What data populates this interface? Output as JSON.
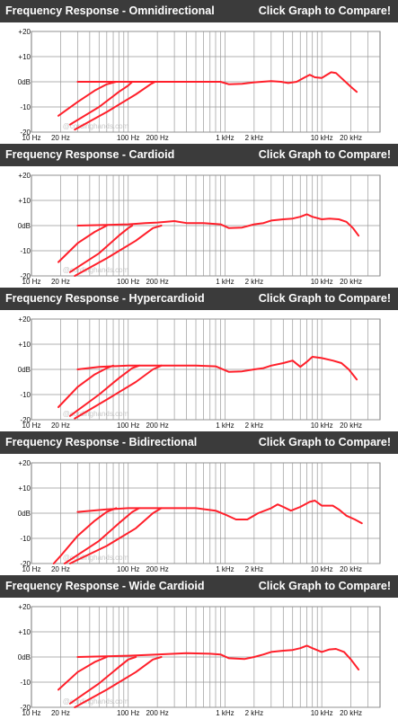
{
  "compare_label": "Click Graph to Compare!",
  "watermark": "@cordinghands.com",
  "colors": {
    "header_bg": "#3b3b3b",
    "grid": "#999999",
    "curve": "#ff1f2a"
  },
  "chart_data": [
    {
      "type": "line",
      "title": "Frequency Response - Omnidirectional",
      "xscale": "log",
      "xlim": [
        10,
        40000
      ],
      "ylim": [
        -20,
        20
      ],
      "x_tick_labels": [
        "10 Hz",
        "20 Hz",
        "100 Hz",
        "200 Hz",
        "1 kHz",
        "2 kHz",
        "10 kHz",
        "20 kHz"
      ],
      "x_tick_values": [
        10,
        20,
        100,
        200,
        1000,
        2000,
        10000,
        20000
      ],
      "y_tick_labels": [
        "+20",
        "+10",
        "0dB",
        "-10",
        "-20"
      ],
      "y_tick_values": [
        20,
        10,
        0,
        -10,
        -20
      ],
      "grid": true,
      "series": [
        {
          "points": [
            [
              30,
              0
            ],
            [
              200,
              0
            ],
            [
              500,
              0
            ],
            [
              900,
              0
            ],
            [
              1100,
              -1
            ],
            [
              1500,
              -0.8
            ],
            [
              2000,
              -0.2
            ],
            [
              3000,
              0.3
            ],
            [
              3800,
              0
            ],
            [
              4500,
              -0.5
            ],
            [
              5500,
              0
            ],
            [
              6500,
              1.5
            ],
            [
              7500,
              2.8
            ],
            [
              8500,
              1.8
            ],
            [
              10000,
              1.5
            ],
            [
              11000,
              2.5
            ],
            [
              12500,
              3.8
            ],
            [
              14000,
              3.5
            ],
            [
              17000,
              0.5
            ],
            [
              20000,
              -2
            ],
            [
              23000,
              -4
            ]
          ]
        },
        {
          "points": [
            [
              19,
              -13.5
            ],
            [
              30,
              -8
            ],
            [
              45,
              -3.5
            ],
            [
              60,
              -1
            ],
            [
              75,
              0
            ]
          ]
        },
        {
          "points": [
            [
              25,
              -17
            ],
            [
              50,
              -10
            ],
            [
              80,
              -4
            ],
            [
              100,
              -1.5
            ],
            [
              110,
              0
            ]
          ]
        },
        {
          "points": [
            [
              28,
              -19
            ],
            [
              60,
              -12
            ],
            [
              120,
              -5
            ],
            [
              170,
              -1
            ],
            [
              190,
              0
            ]
          ]
        }
      ]
    },
    {
      "type": "line",
      "title": "Frequency Response - Cardioid",
      "xscale": "log",
      "xlim": [
        10,
        40000
      ],
      "ylim": [
        -20,
        20
      ],
      "x_tick_labels": [
        "10 Hz",
        "20 Hz",
        "100 Hz",
        "200 Hz",
        "1 kHz",
        "2 kHz",
        "10 kHz",
        "20 kHz"
      ],
      "x_tick_values": [
        10,
        20,
        100,
        200,
        1000,
        2000,
        10000,
        20000
      ],
      "y_tick_labels": [
        "+20",
        "+10",
        "0dB",
        "-10",
        "-20"
      ],
      "y_tick_values": [
        20,
        10,
        0,
        -10,
        -20
      ],
      "grid": true,
      "series": [
        {
          "points": [
            [
              30,
              0
            ],
            [
              60,
              0.3
            ],
            [
              100,
              0.5
            ],
            [
              150,
              1
            ],
            [
              200,
              1.2
            ],
            [
              300,
              1.8
            ],
            [
              400,
              1
            ],
            [
              600,
              1
            ],
            [
              900,
              0.5
            ],
            [
              1100,
              -1
            ],
            [
              1500,
              -0.8
            ],
            [
              2000,
              0.5
            ],
            [
              2500,
              1
            ],
            [
              3000,
              2
            ],
            [
              4000,
              2.5
            ],
            [
              5000,
              2.8
            ],
            [
              6000,
              3.5
            ],
            [
              7000,
              4.5
            ],
            [
              8000,
              3.5
            ],
            [
              10000,
              2.5
            ],
            [
              12000,
              2.8
            ],
            [
              15000,
              2.5
            ],
            [
              18000,
              1.5
            ],
            [
              21000,
              -1
            ],
            [
              24000,
              -4
            ]
          ]
        },
        {
          "points": [
            [
              19,
              -14.5
            ],
            [
              30,
              -7
            ],
            [
              45,
              -2.5
            ],
            [
              60,
              0
            ]
          ]
        },
        {
          "points": [
            [
              25,
              -18.5
            ],
            [
              50,
              -11
            ],
            [
              80,
              -4
            ],
            [
              100,
              -1
            ],
            [
              110,
              0
            ]
          ]
        },
        {
          "points": [
            [
              28,
              -20
            ],
            [
              60,
              -13
            ],
            [
              120,
              -6
            ],
            [
              180,
              -1
            ],
            [
              220,
              0
            ]
          ]
        }
      ]
    },
    {
      "type": "line",
      "title": "Frequency Response - Hypercardioid",
      "xscale": "log",
      "xlim": [
        10,
        40000
      ],
      "ylim": [
        -20,
        20
      ],
      "x_tick_labels": [
        "10 Hz",
        "20 Hz",
        "100 Hz",
        "200 Hz",
        "1 kHz",
        "2 kHz",
        "10 kHz",
        "20 kHz"
      ],
      "x_tick_values": [
        10,
        20,
        100,
        200,
        1000,
        2000,
        10000,
        20000
      ],
      "y_tick_labels": [
        "+20",
        "+10",
        "0dB",
        "-10",
        "-20"
      ],
      "y_tick_values": [
        20,
        10,
        0,
        -10,
        -20
      ],
      "grid": true,
      "series": [
        {
          "points": [
            [
              30,
              0
            ],
            [
              50,
              1
            ],
            [
              100,
              1.5
            ],
            [
              200,
              1.5
            ],
            [
              500,
              1.5
            ],
            [
              800,
              1.2
            ],
            [
              1100,
              -1
            ],
            [
              1500,
              -0.8
            ],
            [
              2000,
              0
            ],
            [
              2500,
              0.5
            ],
            [
              3000,
              1.5
            ],
            [
              4000,
              2.5
            ],
            [
              5000,
              3.5
            ],
            [
              6000,
              1
            ],
            [
              7000,
              3
            ],
            [
              8000,
              5
            ],
            [
              10000,
              4.5
            ],
            [
              13000,
              3.5
            ],
            [
              16000,
              2.5
            ],
            [
              19000,
              0
            ],
            [
              23000,
              -4
            ]
          ]
        },
        {
          "points": [
            [
              19,
              -15
            ],
            [
              30,
              -7
            ],
            [
              45,
              -2
            ],
            [
              60,
              0.5
            ],
            [
              70,
              1.5
            ]
          ]
        },
        {
          "points": [
            [
              25,
              -18.5
            ],
            [
              50,
              -10
            ],
            [
              80,
              -3.5
            ],
            [
              110,
              0.5
            ],
            [
              130,
              1.5
            ]
          ]
        },
        {
          "points": [
            [
              28,
              -19.5
            ],
            [
              60,
              -12
            ],
            [
              120,
              -5
            ],
            [
              180,
              0
            ],
            [
              220,
              1.5
            ]
          ]
        }
      ]
    },
    {
      "type": "line",
      "title": "Frequency Response - Bidirectional",
      "xscale": "log",
      "xlim": [
        10,
        40000
      ],
      "ylim": [
        -20,
        20
      ],
      "x_tick_labels": [
        "10 Hz",
        "20 Hz",
        "100 Hz",
        "200 Hz",
        "1 kHz",
        "2 kHz",
        "10 kHz",
        "20 kHz"
      ],
      "x_tick_values": [
        10,
        20,
        100,
        200,
        1000,
        2000,
        10000,
        20000
      ],
      "y_tick_labels": [
        "+20",
        "+10",
        "0dB",
        "-10",
        "-20"
      ],
      "y_tick_values": [
        20,
        10,
        0,
        -10,
        -20
      ],
      "grid": true,
      "series": [
        {
          "points": [
            [
              30,
              0.5
            ],
            [
              60,
              1.5
            ],
            [
              100,
              2
            ],
            [
              200,
              2
            ],
            [
              500,
              2
            ],
            [
              800,
              1
            ],
            [
              1000,
              -0.5
            ],
            [
              1300,
              -2.5
            ],
            [
              1700,
              -2.5
            ],
            [
              2200,
              0
            ],
            [
              3000,
              2
            ],
            [
              3500,
              3.5
            ],
            [
              4000,
              2.5
            ],
            [
              4800,
              1
            ],
            [
              6000,
              2.5
            ],
            [
              7500,
              4.5
            ],
            [
              8500,
              5
            ],
            [
              10000,
              3
            ],
            [
              13000,
              3
            ],
            [
              15000,
              1.5
            ],
            [
              18000,
              -1
            ],
            [
              22000,
              -2.5
            ],
            [
              26000,
              -4
            ]
          ]
        },
        {
          "points": [
            [
              17,
              -20
            ],
            [
              20,
              -17
            ],
            [
              30,
              -9
            ],
            [
              45,
              -3
            ],
            [
              60,
              0.5
            ],
            [
              75,
              2
            ]
          ]
        },
        {
          "points": [
            [
              22,
              -20
            ],
            [
              50,
              -11
            ],
            [
              80,
              -4
            ],
            [
              110,
              0.5
            ],
            [
              130,
              2
            ]
          ]
        },
        {
          "points": [
            [
              25,
              -20
            ],
            [
              60,
              -13
            ],
            [
              120,
              -6
            ],
            [
              180,
              0
            ],
            [
              220,
              2
            ]
          ]
        }
      ]
    },
    {
      "type": "line",
      "title": "Frequency Response - Wide Cardioid",
      "xscale": "log",
      "xlim": [
        10,
        40000
      ],
      "ylim": [
        -20,
        20
      ],
      "x_tick_labels": [
        "10 Hz",
        "20 Hz",
        "100 Hz",
        "200 Hz",
        "1 kHz",
        "2 kHz",
        "10 kHz",
        "20 kHz"
      ],
      "x_tick_values": [
        10,
        20,
        100,
        200,
        1000,
        2000,
        10000,
        20000
      ],
      "y_tick_labels": [
        "+20",
        "+10",
        "0dB",
        "-10",
        "-20"
      ],
      "y_tick_values": [
        20,
        10,
        0,
        -10,
        -20
      ],
      "grid": true,
      "series": [
        {
          "points": [
            [
              30,
              0
            ],
            [
              100,
              0.5
            ],
            [
              200,
              1
            ],
            [
              400,
              1.5
            ],
            [
              700,
              1.3
            ],
            [
              900,
              1
            ],
            [
              1100,
              -0.5
            ],
            [
              1600,
              -0.8
            ],
            [
              2000,
              0
            ],
            [
              2500,
              1
            ],
            [
              3000,
              2
            ],
            [
              4000,
              2.5
            ],
            [
              5000,
              2.8
            ],
            [
              6000,
              3.5
            ],
            [
              7000,
              4.5
            ],
            [
              8000,
              3.5
            ],
            [
              10000,
              2
            ],
            [
              12000,
              3
            ],
            [
              14000,
              3.2
            ],
            [
              17000,
              2
            ],
            [
              20000,
              -1
            ],
            [
              24000,
              -5
            ]
          ]
        },
        {
          "points": [
            [
              19,
              -13
            ],
            [
              30,
              -6
            ],
            [
              45,
              -2
            ],
            [
              60,
              0
            ]
          ]
        },
        {
          "points": [
            [
              25,
              -18.5
            ],
            [
              50,
              -10.5
            ],
            [
              80,
              -4
            ],
            [
              100,
              -1
            ],
            [
              120,
              0
            ]
          ]
        },
        {
          "points": [
            [
              28,
              -20
            ],
            [
              60,
              -13
            ],
            [
              120,
              -6
            ],
            [
              180,
              -1
            ],
            [
              220,
              0
            ]
          ]
        }
      ]
    }
  ]
}
